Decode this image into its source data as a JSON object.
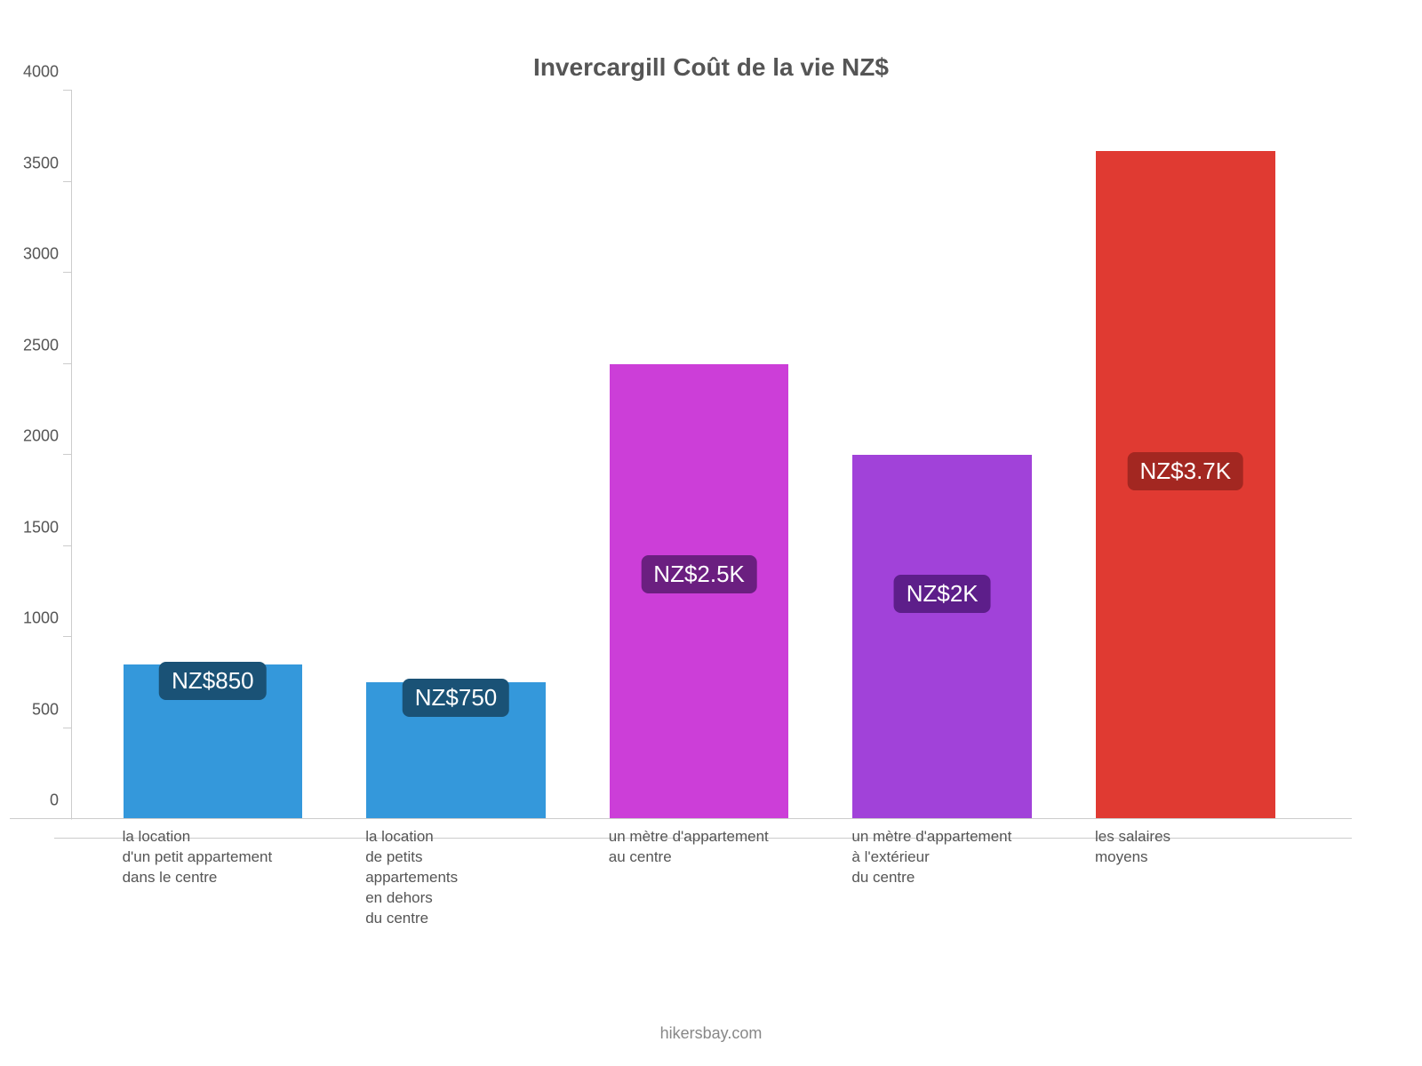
{
  "chart": {
    "type": "bar",
    "title": "Invercargill Coût de la vie NZ$",
    "title_color": "#555555",
    "title_fontsize": 28,
    "background_color": "#ffffff",
    "axis_color": "#cccccc",
    "label_color": "#555555",
    "label_fontsize": 18,
    "xlabel_fontsize": 17,
    "y": {
      "min": 0,
      "max": 4000,
      "ticks": [
        0,
        500,
        1000,
        1500,
        2000,
        2500,
        3000,
        3500,
        4000
      ]
    },
    "bar_width_pct": 14,
    "bars": [
      {
        "label_lines": [
          "la location",
          "d'un petit appartement",
          "dans le centre"
        ],
        "value": 850,
        "display": "NZ$850",
        "color": "#3498db",
        "badge_bg": "#1a5276",
        "left_pct": 4
      },
      {
        "label_lines": [
          "la location",
          "de petits",
          "appartements",
          "en dehors",
          "du centre"
        ],
        "value": 750,
        "display": "NZ$750",
        "color": "#3498db",
        "badge_bg": "#1a5276",
        "left_pct": 23
      },
      {
        "label_lines": [
          "un mètre d'appartement",
          "au centre"
        ],
        "value": 2500,
        "display": "NZ$2.5K",
        "color": "#cc3ed8",
        "badge_bg": "#6b1f80",
        "left_pct": 42
      },
      {
        "label_lines": [
          "un mètre d'appartement",
          "à l'extérieur",
          "du centre"
        ],
        "value": 2000,
        "display": "NZ$2K",
        "color": "#a142d9",
        "badge_bg": "#5d1e8a",
        "left_pct": 61
      },
      {
        "label_lines": [
          "les salaires",
          "moyens"
        ],
        "value": 3666,
        "display": "NZ$3.7K",
        "color": "#e03a32",
        "badge_bg": "#a32721",
        "left_pct": 80
      }
    ],
    "attribution": "hikersbay.com",
    "attribution_color": "#888888"
  }
}
